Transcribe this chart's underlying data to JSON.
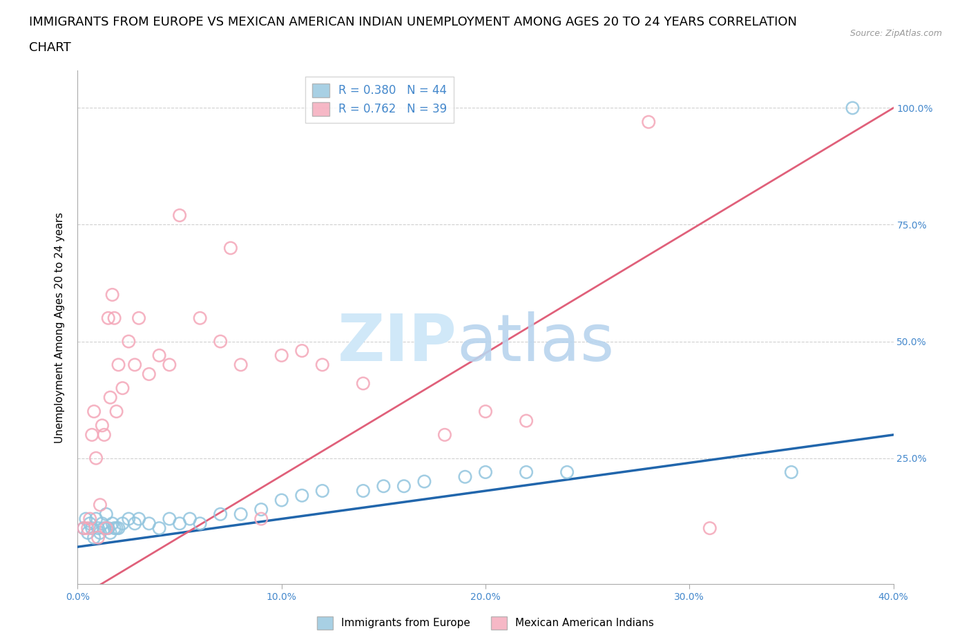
{
  "title_line1": "IMMIGRANTS FROM EUROPE VS MEXICAN AMERICAN INDIAN UNEMPLOYMENT AMONG AGES 20 TO 24 YEARS CORRELATION",
  "title_line2": "CHART",
  "source_text": "Source: ZipAtlas.com",
  "ylabel": "Unemployment Among Ages 20 to 24 years",
  "xlim": [
    0.0,
    0.4
  ],
  "ylim": [
    -0.02,
    1.08
  ],
  "xtick_vals": [
    0.0,
    0.1,
    0.2,
    0.3,
    0.4
  ],
  "xtick_labels": [
    "0.0%",
    "10.0%",
    "20.0%",
    "30.0%",
    "40.0%"
  ],
  "ytick_vals": [
    0.0,
    0.25,
    0.5,
    0.75,
    1.0
  ],
  "ytick_labels": [
    "",
    "25.0%",
    "50.0%",
    "75.0%",
    "100.0%"
  ],
  "legend1_label": "R = 0.380   N = 44",
  "legend2_label": "R = 0.762   N = 39",
  "legend_bottom_label1": "Immigrants from Europe",
  "legend_bottom_label2": "Mexican American Indians",
  "blue_color": "#92c5de",
  "pink_color": "#f4a6b8",
  "blue_line_color": "#2166ac",
  "pink_line_color": "#e0607a",
  "watermark_zip_color": "#d0e8f8",
  "watermark_atlas_color": "#b8d4ee",
  "background_color": "#ffffff",
  "grid_color": "#d0d0d0",
  "axis_color": "#aaaaaa",
  "tick_color": "#4488cc",
  "title_fontsize": 13,
  "label_fontsize": 11,
  "tick_fontsize": 10,
  "blue_scatter_x": [
    0.003,
    0.004,
    0.005,
    0.006,
    0.007,
    0.008,
    0.009,
    0.01,
    0.011,
    0.012,
    0.013,
    0.014,
    0.015,
    0.016,
    0.017,
    0.018,
    0.019,
    0.02,
    0.022,
    0.025,
    0.028,
    0.03,
    0.035,
    0.04,
    0.045,
    0.05,
    0.055,
    0.06,
    0.07,
    0.08,
    0.09,
    0.1,
    0.11,
    0.12,
    0.14,
    0.15,
    0.16,
    0.17,
    0.19,
    0.2,
    0.22,
    0.24,
    0.35,
    0.38
  ],
  "blue_scatter_y": [
    0.1,
    0.12,
    0.09,
    0.11,
    0.1,
    0.08,
    0.12,
    0.1,
    0.09,
    0.11,
    0.1,
    0.13,
    0.1,
    0.09,
    0.11,
    0.1,
    0.1,
    0.1,
    0.11,
    0.12,
    0.11,
    0.12,
    0.11,
    0.1,
    0.12,
    0.11,
    0.12,
    0.11,
    0.13,
    0.13,
    0.14,
    0.16,
    0.17,
    0.18,
    0.18,
    0.19,
    0.19,
    0.2,
    0.21,
    0.22,
    0.22,
    0.22,
    0.22,
    1.0
  ],
  "pink_scatter_x": [
    0.003,
    0.005,
    0.006,
    0.007,
    0.008,
    0.009,
    0.01,
    0.011,
    0.012,
    0.013,
    0.014,
    0.015,
    0.016,
    0.017,
    0.018,
    0.019,
    0.02,
    0.022,
    0.025,
    0.028,
    0.03,
    0.035,
    0.04,
    0.045,
    0.05,
    0.06,
    0.07,
    0.075,
    0.08,
    0.09,
    0.1,
    0.11,
    0.12,
    0.14,
    0.18,
    0.2,
    0.22,
    0.28,
    0.31
  ],
  "pink_scatter_y": [
    0.1,
    0.1,
    0.12,
    0.3,
    0.35,
    0.25,
    0.08,
    0.15,
    0.32,
    0.3,
    0.1,
    0.55,
    0.38,
    0.6,
    0.55,
    0.35,
    0.45,
    0.4,
    0.5,
    0.45,
    0.55,
    0.43,
    0.47,
    0.45,
    0.77,
    0.55,
    0.5,
    0.7,
    0.45,
    0.12,
    0.47,
    0.48,
    0.45,
    0.41,
    0.3,
    0.35,
    0.33,
    0.97,
    0.1
  ],
  "blue_trend": [
    0.0,
    0.06,
    0.4,
    0.3
  ],
  "pink_trend": [
    0.0,
    -0.05,
    0.4,
    1.0
  ]
}
